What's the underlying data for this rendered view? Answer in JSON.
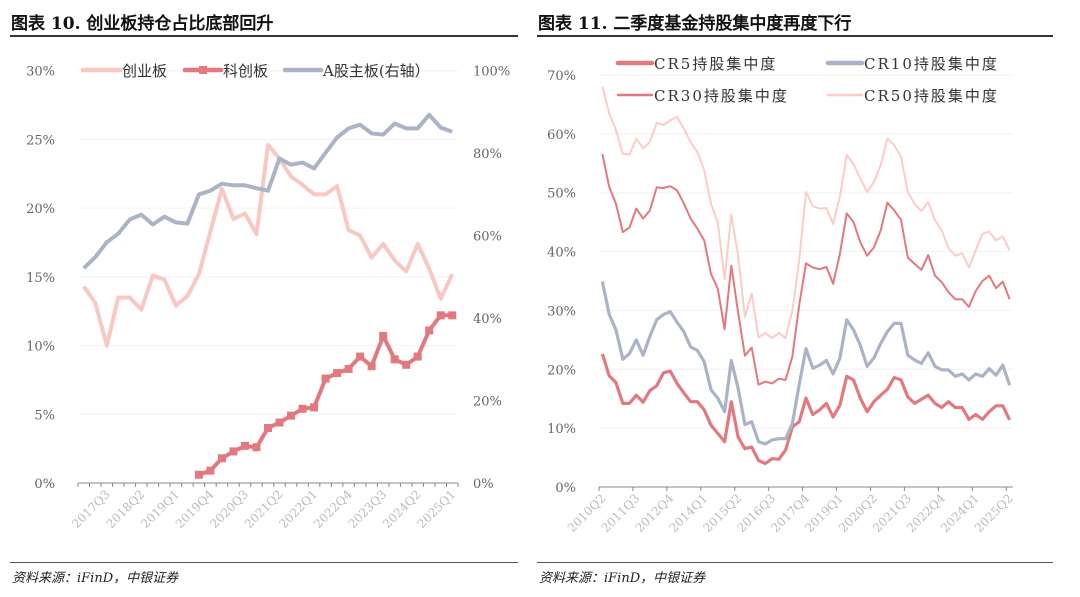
{
  "left": {
    "title": "图表 10. 创业板持仓占比底部回升",
    "source": "资料来源：iFinD，中银证券"
  },
  "right": {
    "title": "图表 11. 二季度基金持股集中度再度下行",
    "source": "资料来源：iFinD，中银证券"
  },
  "chart_data": [
    {
      "type": "line",
      "categories": [
        "2017Q1",
        "2017Q2",
        "2017Q3",
        "2017Q4",
        "2018Q1",
        "2018Q2",
        "2018Q3",
        "2018Q4",
        "2019Q1",
        "2019Q2",
        "2019Q3",
        "2019Q4",
        "2020Q1",
        "2020Q2",
        "2020Q3",
        "2020Q4",
        "2021Q1",
        "2021Q2",
        "2021Q3",
        "2021Q4",
        "2022Q1",
        "2022Q2",
        "2022Q3",
        "2022Q4",
        "2023Q1",
        "2023Q2",
        "2023Q3",
        "2023Q4",
        "2024Q1",
        "2024Q2",
        "2024Q3",
        "2024Q4",
        "2025Q1"
      ],
      "tick_labels": [
        "2017Q3",
        "2018Q2",
        "2019Q1",
        "2019Q4",
        "2020Q3",
        "2021Q2",
        "2022Q1",
        "2022Q4",
        "2023Q3",
        "2024Q2",
        "2025Q1"
      ],
      "ylim": [
        0,
        30
      ],
      "y_ticks": [
        "0%",
        "5%",
        "10%",
        "15%",
        "20%",
        "25%",
        "30%"
      ],
      "y2lim": [
        0,
        100
      ],
      "y2_ticks": [
        "0%",
        "20%",
        "40%",
        "60%",
        "80%",
        "100%"
      ],
      "legend_position": "top",
      "grid": true,
      "series": [
        {
          "name": "创业板",
          "axis": "left",
          "color": "#f9c8c3",
          "marker": false,
          "values": [
            14.3,
            13.1,
            10.0,
            13.5,
            13.5,
            12.6,
            15.1,
            14.8,
            12.9,
            13.6,
            15.2,
            18.3,
            21.4,
            19.2,
            19.6,
            18.1,
            24.6,
            23.6,
            22.3,
            21.7,
            21.0,
            21.0,
            21.6,
            18.4,
            18.0,
            16.4,
            17.4,
            16.2,
            15.4,
            17.4,
            15.6,
            13.4,
            15.2
          ]
        },
        {
          "name": "科创板",
          "axis": "left",
          "color": "#e2797f",
          "marker": true,
          "values": [
            null,
            null,
            null,
            null,
            null,
            null,
            null,
            null,
            null,
            null,
            0.6,
            0.9,
            1.8,
            2.3,
            2.7,
            2.6,
            4.0,
            4.4,
            4.9,
            5.4,
            5.5,
            7.6,
            8.0,
            8.3,
            9.2,
            8.5,
            10.7,
            9.0,
            8.6,
            9.2,
            11.1,
            12.2,
            12.2
          ]
        },
        {
          "name": "A股主板(右轴）",
          "axis": "right",
          "color": "#aab4c6",
          "marker": false,
          "values": [
            52.1,
            54.8,
            58.4,
            60.5,
            63.9,
            65.1,
            62.7,
            64.6,
            63.2,
            62.9,
            70.0,
            70.9,
            72.6,
            72.2,
            72.2,
            71.5,
            70.9,
            78.7,
            77.2,
            77.7,
            76.3,
            80.1,
            83.8,
            86.0,
            86.9,
            84.8,
            84.5,
            87.2,
            86.0,
            86.0,
            89.3,
            86.2,
            85.2
          ]
        }
      ]
    },
    {
      "type": "line",
      "categories": [
        "2010Q2",
        "2010Q3",
        "2010Q4",
        "2011Q1",
        "2011Q2",
        "2011Q3",
        "2011Q4",
        "2012Q1",
        "2012Q2",
        "2012Q3",
        "2012Q4",
        "2013Q1",
        "2013Q2",
        "2013Q3",
        "2013Q4",
        "2014Q1",
        "2014Q2",
        "2014Q3",
        "2014Q4",
        "2015Q1",
        "2015Q2",
        "2015Q3",
        "2015Q4",
        "2016Q1",
        "2016Q2",
        "2016Q3",
        "2016Q4",
        "2017Q1",
        "2017Q2",
        "2017Q3",
        "2017Q4",
        "2018Q1",
        "2018Q2",
        "2018Q3",
        "2018Q4",
        "2019Q1",
        "2019Q2",
        "2019Q3",
        "2019Q4",
        "2020Q1",
        "2020Q2",
        "2020Q3",
        "2020Q4",
        "2021Q1",
        "2021Q2",
        "2021Q3",
        "2021Q4",
        "2022Q1",
        "2022Q2",
        "2022Q3",
        "2022Q4",
        "2023Q1",
        "2023Q2",
        "2023Q3",
        "2023Q4",
        "2024Q1",
        "2024Q2",
        "2024Q3",
        "2024Q4",
        "2025Q1",
        "2025Q2"
      ],
      "tick_labels": [
        "2010Q2",
        "2011Q3",
        "2012Q4",
        "2014Q1",
        "2015Q2",
        "2016Q3",
        "2017Q4",
        "2019Q1",
        "2020Q2",
        "2021Q3",
        "2022Q4",
        "2024Q1",
        "2025Q2"
      ],
      "ylim": [
        0,
        70
      ],
      "y_ticks": [
        "0%",
        "10%",
        "20%",
        "30%",
        "40%",
        "50%",
        "60%",
        "70%"
      ],
      "legend_position": "top",
      "grid": true,
      "series": [
        {
          "name": "CR5持股集中度",
          "color": "#e2797f",
          "width": "bold",
          "values": [
            22.6,
            18.9,
            17.7,
            14.2,
            14.2,
            15.6,
            14.4,
            16.4,
            17.2,
            19.4,
            19.7,
            17.6,
            16.0,
            14.5,
            14.5,
            13.1,
            10.5,
            9.1,
            7.7,
            14.5,
            8.5,
            6.5,
            6.8,
            4.5,
            4.0,
            4.8,
            4.7,
            6.3,
            10.2,
            11.1,
            15.1,
            12.3,
            13.1,
            14.2,
            11.9,
            13.9,
            18.8,
            18.2,
            15.1,
            12.8,
            14.5,
            15.6,
            16.6,
            18.6,
            18.2,
            15.3,
            14.2,
            14.9,
            15.6,
            14.2,
            13.5,
            14.5,
            13.5,
            13.5,
            11.5,
            12.3,
            11.5,
            12.8,
            13.8,
            13.8,
            11.4
          ]
        },
        {
          "name": "CR10持股集中度",
          "color": "#aab4c6",
          "width": "bold",
          "values": [
            34.9,
            29.3,
            26.7,
            21.7,
            22.7,
            25.0,
            22.4,
            25.6,
            28.4,
            29.3,
            29.8,
            28.0,
            26.4,
            23.8,
            23.2,
            21.3,
            16.5,
            15.1,
            12.8,
            21.5,
            16.8,
            10.6,
            11.1,
            7.7,
            7.3,
            8.0,
            8.2,
            8.2,
            10.8,
            17.4,
            23.5,
            20.2,
            20.7,
            21.5,
            19.2,
            21.9,
            28.4,
            26.7,
            24.1,
            20.5,
            21.9,
            24.4,
            26.4,
            27.8,
            27.8,
            22.4,
            21.6,
            21.0,
            22.8,
            20.5,
            19.9,
            19.9,
            18.8,
            19.2,
            18.2,
            19.2,
            18.8,
            20.1,
            19.0,
            20.7,
            17.3
          ]
        },
        {
          "name": "CR30持股集中度",
          "color": "#e2797f",
          "width": "thin",
          "values": [
            56.6,
            51.0,
            48.1,
            43.3,
            44.1,
            47.3,
            45.6,
            47.0,
            50.9,
            50.8,
            51.1,
            50.4,
            48.2,
            45.6,
            43.9,
            41.9,
            36.2,
            33.7,
            26.8,
            37.6,
            29.7,
            22.3,
            23.7,
            17.4,
            17.9,
            17.6,
            18.4,
            18.2,
            22.2,
            30.9,
            38.0,
            37.3,
            37.0,
            37.4,
            34.5,
            39.6,
            46.5,
            45.0,
            41.6,
            39.3,
            40.7,
            43.6,
            48.3,
            47.0,
            45.4,
            39.0,
            37.9,
            36.9,
            39.4,
            35.9,
            34.8,
            33.1,
            31.9,
            31.9,
            30.6,
            33.3,
            35.0,
            35.9,
            33.8,
            34.9,
            31.9
          ]
        },
        {
          "name": "CR50持股集中度",
          "color": "#fbcdc8",
          "width": "thin",
          "values": [
            68.0,
            63.5,
            60.6,
            56.6,
            56.5,
            59.2,
            57.5,
            58.6,
            61.9,
            61.5,
            62.3,
            62.9,
            60.9,
            58.6,
            56.9,
            53.8,
            48.1,
            45.0,
            35.3,
            46.3,
            39.3,
            28.9,
            32.9,
            25.4,
            26.2,
            25.3,
            26.2,
            25.3,
            30.0,
            38.5,
            50.1,
            47.7,
            47.3,
            47.4,
            44.7,
            49.3,
            56.4,
            54.9,
            52.4,
            50.1,
            51.8,
            54.7,
            59.2,
            58.1,
            56.1,
            50.1,
            48.1,
            46.9,
            48.4,
            45.3,
            43.6,
            40.6,
            39.3,
            39.7,
            37.3,
            40.2,
            43.0,
            43.4,
            41.9,
            42.6,
            40.2
          ]
        }
      ]
    }
  ]
}
